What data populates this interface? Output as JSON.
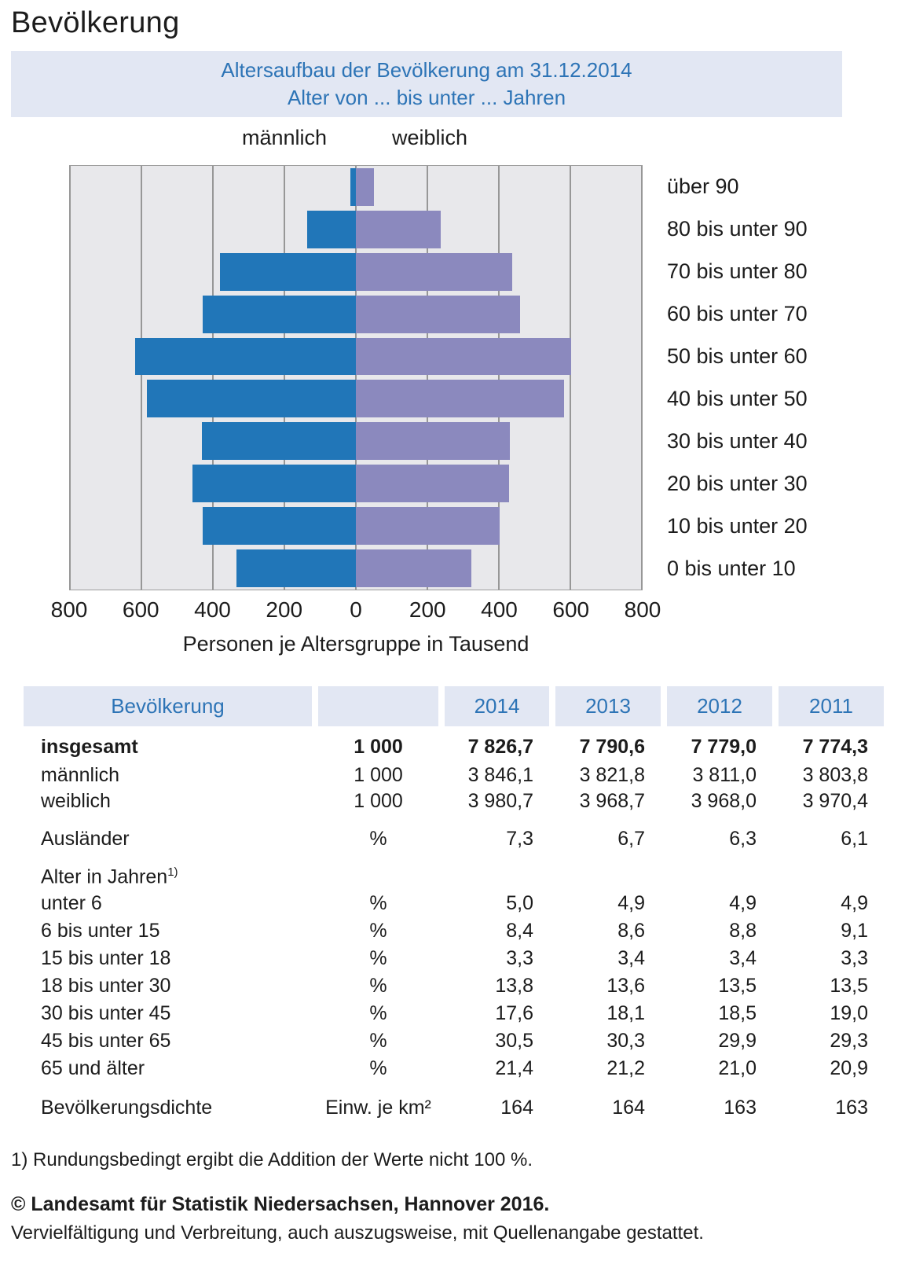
{
  "page_title": "Bevölkerung",
  "chart": {
    "title_line1": "Altersaufbau der Bevölkerung am 31.12.2014",
    "title_line2": "Alter von ... bis unter ... Jahren",
    "legend_male": "männlich",
    "legend_female": "weiblich",
    "x_ticks": [
      "800",
      "600",
      "400",
      "200",
      "0",
      "200",
      "400",
      "600",
      "800"
    ],
    "x_label": "Personen je Altersgruppe in Tausend"
  },
  "chart_data": {
    "type": "bar",
    "subtype": "population-pyramid",
    "title": "Altersaufbau der Bevölkerung am 31.12.2014",
    "subtitle": "Alter von ... bis unter ... Jahren",
    "xlabel": "Personen je Altersgruppe in Tausend",
    "xlim": [
      -800,
      800
    ],
    "x_tick_step": 200,
    "grid": true,
    "legend_position": "top",
    "categories": [
      "über 90",
      "80 bis unter 90",
      "70 bis unter 80",
      "60 bis unter 70",
      "50 bis unter 60",
      "40 bis unter 50",
      "30 bis unter 40",
      "20 bis unter 30",
      "10 bis unter 20",
      "0 bis unter 10"
    ],
    "series": [
      {
        "name": "männlich",
        "side": "left",
        "color": "#2176b8",
        "values": [
          16,
          135,
          380,
          427,
          617,
          583,
          430,
          455,
          427,
          333
        ]
      },
      {
        "name": "weiblich",
        "side": "right",
        "color": "#8b89be",
        "values": [
          50,
          237,
          437,
          458,
          600,
          581,
          430,
          428,
          402,
          322
        ]
      }
    ]
  },
  "table": {
    "header_title": "Bevölkerung",
    "years": [
      "2014",
      "2013",
      "2012",
      "2011"
    ],
    "rows": [
      {
        "label": "insgesamt",
        "unit": "1 000",
        "values": [
          "7 826,7",
          "7 790,6",
          "7 779,0",
          "7 774,3"
        ],
        "bold": true
      },
      {
        "label": "männlich",
        "unit": "1 000",
        "values": [
          "3 846,1",
          "3 821,8",
          "3 811,0",
          "3 803,8"
        ]
      },
      {
        "label": "weiblich",
        "unit": "1 000",
        "values": [
          "3 980,7",
          "3 968,7",
          "3 968,0",
          "3 970,4"
        ]
      },
      {
        "label": "Ausländer",
        "unit": "%",
        "values": [
          "7,3",
          "6,7",
          "6,3",
          "6,1"
        ],
        "gap": true
      },
      {
        "label": "Alter in Jahren",
        "sup": "1)",
        "unit": "",
        "values": [
          "",
          "",
          "",
          ""
        ],
        "gap": true
      },
      {
        "label": "unter 6",
        "unit": "%",
        "values": [
          "5,0",
          "4,9",
          "4,9",
          "4,9"
        ]
      },
      {
        "label": "6 bis unter 15",
        "unit": "%",
        "values": [
          "8,4",
          "8,6",
          "8,8",
          "9,1"
        ]
      },
      {
        "label": "15 bis unter 18",
        "unit": "%",
        "values": [
          "3,3",
          "3,4",
          "3,4",
          "3,3"
        ]
      },
      {
        "label": "18 bis unter 30",
        "unit": "%",
        "values": [
          "13,8",
          "13,6",
          "13,5",
          "13,5"
        ]
      },
      {
        "label": "30 bis unter 45",
        "unit": "%",
        "values": [
          "17,6",
          "18,1",
          "18,5",
          "19,0"
        ]
      },
      {
        "label": "45 bis unter 65",
        "unit": "%",
        "values": [
          "30,5",
          "30,3",
          "29,9",
          "29,3"
        ]
      },
      {
        "label": "65 und älter",
        "unit": "%",
        "values": [
          "21,4",
          "21,2",
          "21,0",
          "20,9"
        ]
      },
      {
        "label": "Bevölkerungsdichte",
        "unit": "Einw. je km²",
        "values": [
          "164",
          "164",
          "163",
          "163"
        ],
        "gap": true
      }
    ]
  },
  "footnote": "1) Rundungsbedingt ergibt die Addition der Werte nicht 100 %.",
  "copyright_line1": "© Landesamt für Statistik Niedersachsen, Hannover 2016.",
  "copyright_line2": "Vervielfältigung und Verbreitung, auch auszugsweise, mit Quellenangabe gestattet.",
  "colors": {
    "male_bar": "#2176b8",
    "female_bar": "#8b89be",
    "plot_background": "#e8e8eb",
    "gridline": "#979797",
    "band_background": "#e2e7f3",
    "accent_text": "#2d74b6",
    "body_text": "#1c1c1c"
  }
}
